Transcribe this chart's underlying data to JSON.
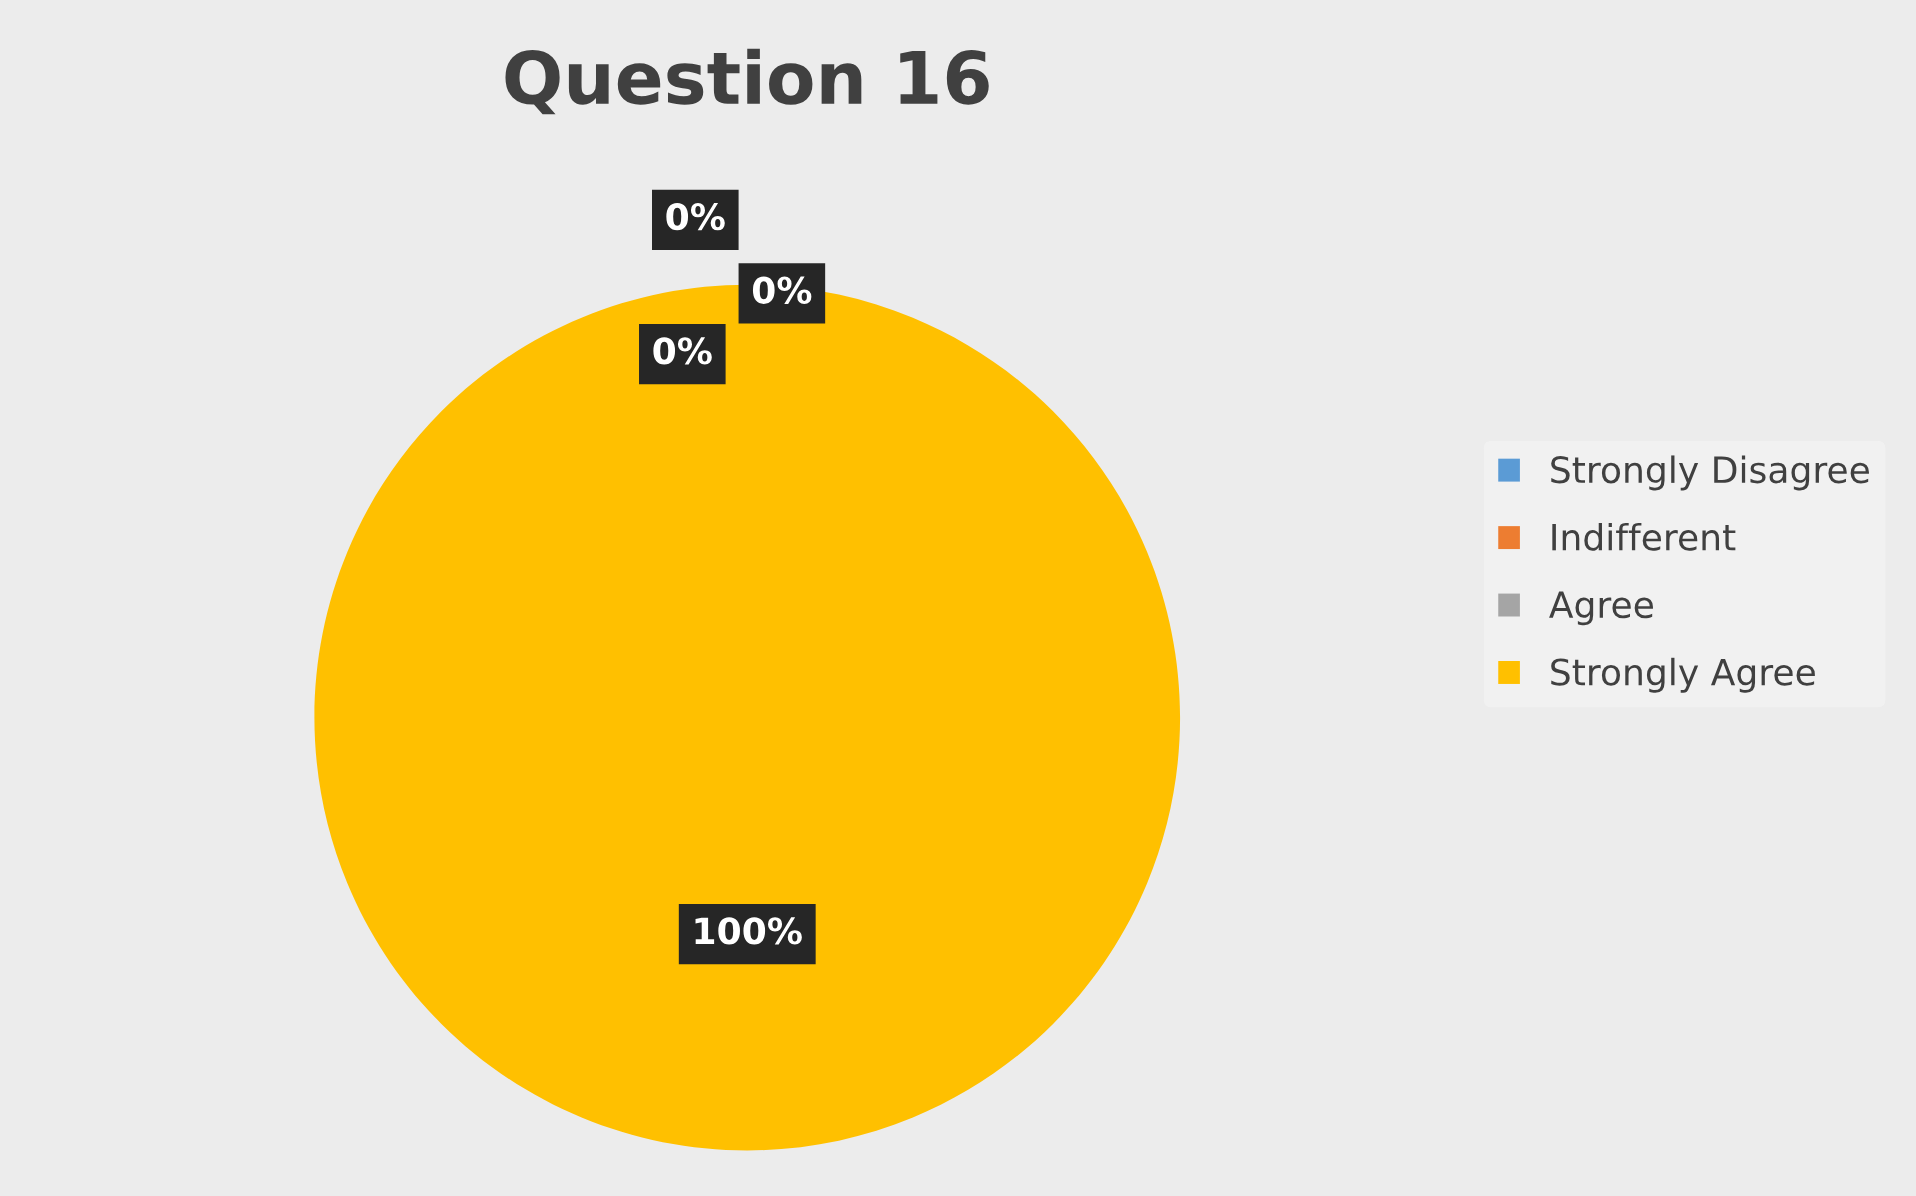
{
  "chart_data": {
    "type": "pie",
    "title": "Question 16",
    "categories": [
      "Strongly Disagree",
      "Indifferent",
      "Agree",
      "Strongly Agree"
    ],
    "values": [
      0,
      0,
      0,
      100
    ],
    "colors": [
      "#5b9bd5",
      "#ed7d31",
      "#a5a5a5",
      "#ffc000"
    ],
    "value_labels": [
      "0%",
      "0%",
      "0%",
      "100%"
    ],
    "legend": "right"
  }
}
